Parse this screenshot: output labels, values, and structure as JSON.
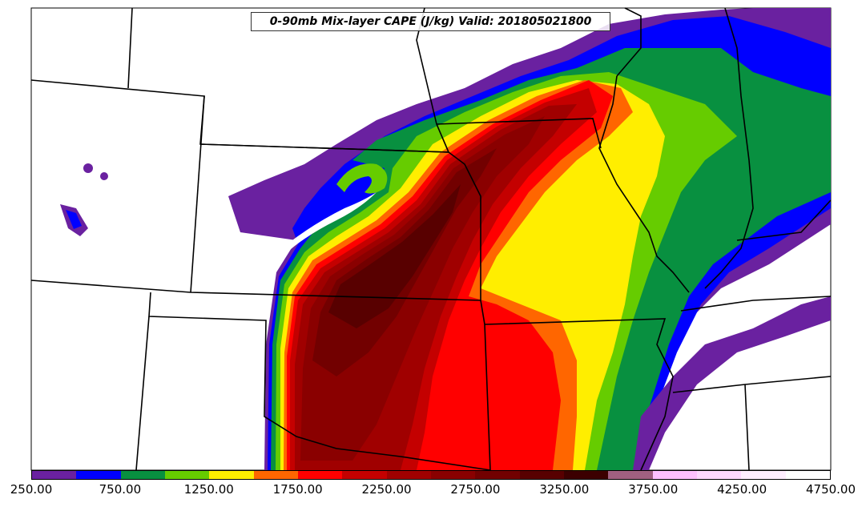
{
  "title": "0-90mb Mix-layer CAPE (J/kg) Valid: 201805021800",
  "colorbar": {
    "colors": [
      "#6a21a0",
      "#0000ff",
      "#089040",
      "#66cc00",
      "#ffee00",
      "#ff6600",
      "#ff0000",
      "#c40000",
      "#a00000",
      "#8a0000",
      "#720000",
      "#580000",
      "#3c0000",
      "#a06080",
      "#ffc0ff",
      "#ffd8ff",
      "#ffeeff",
      "#ffffff"
    ],
    "tick_labels": [
      "250.00",
      "750.00",
      "1250.00",
      "1750.00",
      "2250.00",
      "2750.00",
      "3250.00",
      "3750.00",
      "4250.00",
      "4750.00"
    ]
  },
  "map": {
    "field": "CAPE",
    "units": "J/kg",
    "valid_time": "201805021800"
  }
}
